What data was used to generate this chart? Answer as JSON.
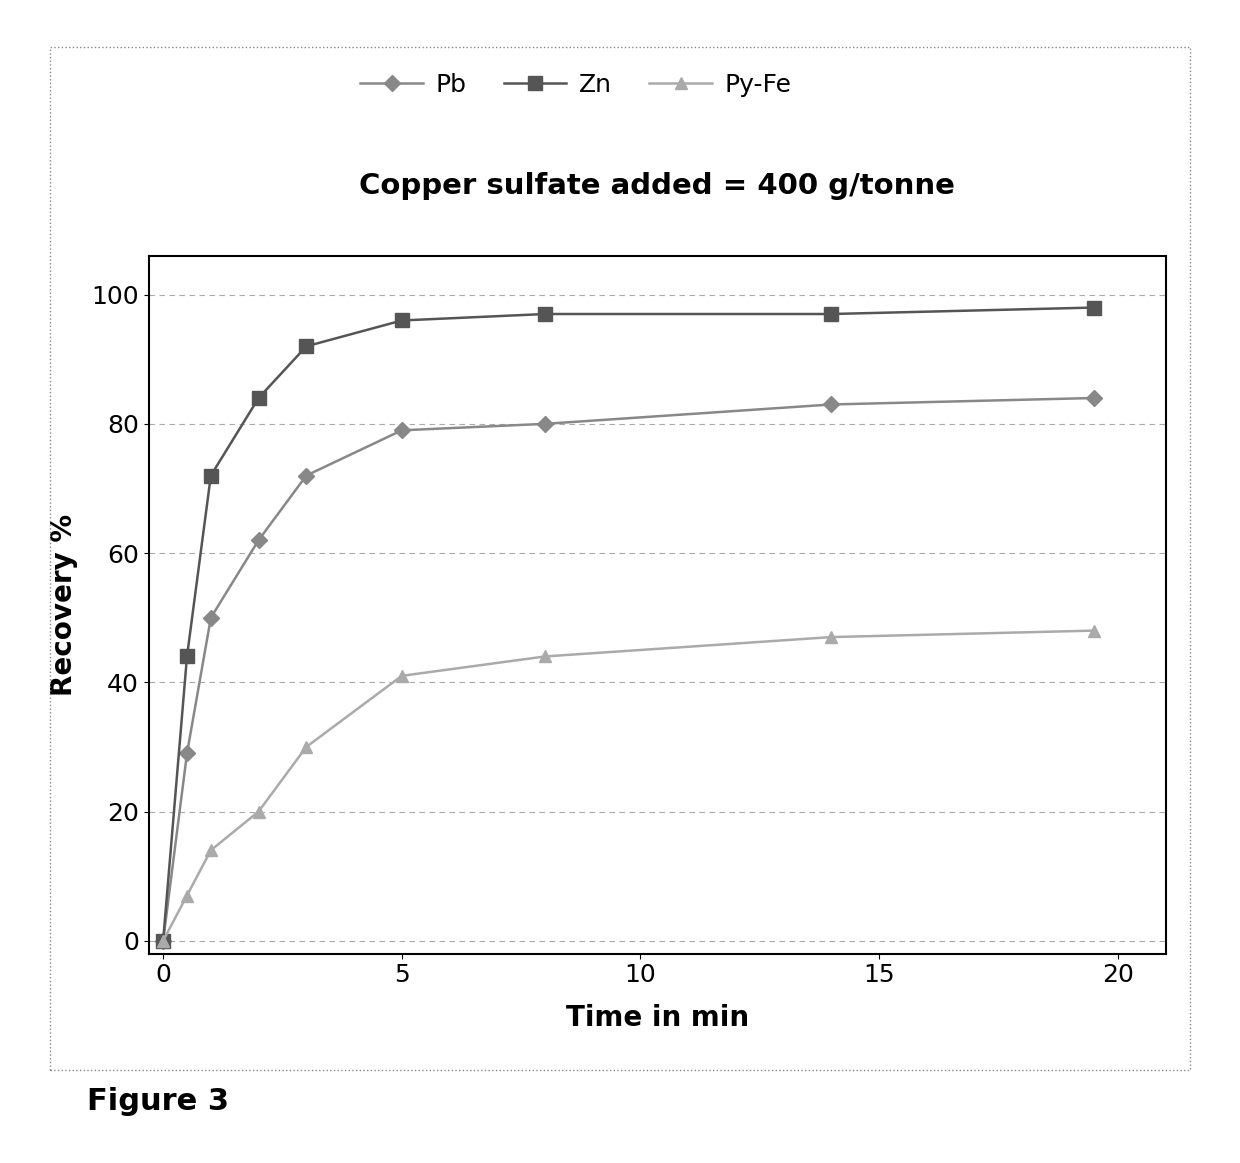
{
  "title": "Copper sulfate added = 400 g/tonne",
  "xlabel": "Time in min",
  "ylabel": "Recovery %",
  "figure3_label": "Figure 3",
  "xlim": [
    -0.3,
    21
  ],
  "ylim": [
    -2,
    106
  ],
  "xticks": [
    0,
    5,
    10,
    15,
    20
  ],
  "yticks": [
    0,
    20,
    40,
    60,
    80,
    100
  ],
  "grid_color": "#aaaaaa",
  "bg_color": "#ffffff",
  "series": [
    {
      "label": "Pb",
      "x": [
        0,
        0.5,
        1,
        2,
        3,
        5,
        8,
        14,
        19.5
      ],
      "y": [
        0,
        29,
        50,
        62,
        72,
        79,
        80,
        83,
        84
      ],
      "color": "#888888",
      "marker": "D",
      "markersize": 8,
      "linewidth": 1.8
    },
    {
      "label": "Zn",
      "x": [
        0,
        0.5,
        1,
        2,
        3,
        5,
        8,
        14,
        19.5
      ],
      "y": [
        0,
        44,
        72,
        84,
        92,
        96,
        97,
        97,
        98
      ],
      "color": "#555555",
      "marker": "s",
      "markersize": 10,
      "linewidth": 1.8
    },
    {
      "label": "Py-Fe",
      "x": [
        0,
        0.5,
        1,
        2,
        3,
        5,
        8,
        14,
        19.5
      ],
      "y": [
        0,
        7,
        14,
        20,
        30,
        41,
        44,
        47,
        48
      ],
      "color": "#aaaaaa",
      "marker": "^",
      "markersize": 9,
      "linewidth": 1.8
    }
  ]
}
